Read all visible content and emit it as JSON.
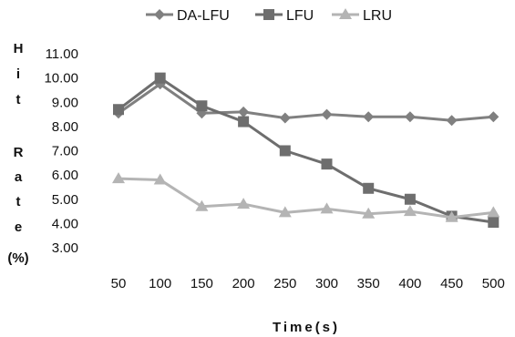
{
  "chart_data": {
    "type": "line",
    "title": "",
    "xlabel": "Time(s)",
    "ylabel": "Hit Rate (%)",
    "x": [
      50,
      100,
      150,
      200,
      250,
      300,
      350,
      400,
      450,
      500
    ],
    "x_tick_labels": [
      "50",
      "100",
      "150",
      "200",
      "250",
      "300",
      "350",
      "400",
      "450",
      "500"
    ],
    "ylim": [
      3.0,
      11.0
    ],
    "y_ticks": [
      "11.00",
      "10.00",
      "9.00",
      "8.00",
      "7.00",
      "6.00",
      "5.00",
      "4.00",
      "3.00"
    ],
    "grid": false,
    "legend_position": "top",
    "series": [
      {
        "name": "DA-LFU",
        "marker": "diamond",
        "color": "#808080",
        "values": [
          8.55,
          9.75,
          8.55,
          8.6,
          8.35,
          8.5,
          8.4,
          8.4,
          8.25,
          8.4
        ]
      },
      {
        "name": "LFU",
        "marker": "square",
        "color": "#6e6e6e",
        "values": [
          8.7,
          10.0,
          8.85,
          8.2,
          7.0,
          6.45,
          5.45,
          5.0,
          4.3,
          4.05
        ]
      },
      {
        "name": "LRU",
        "marker": "triangle",
        "color": "#b4b4b4",
        "values": [
          5.85,
          5.8,
          4.7,
          4.8,
          4.45,
          4.6,
          4.4,
          4.5,
          4.25,
          4.45
        ]
      }
    ]
  }
}
